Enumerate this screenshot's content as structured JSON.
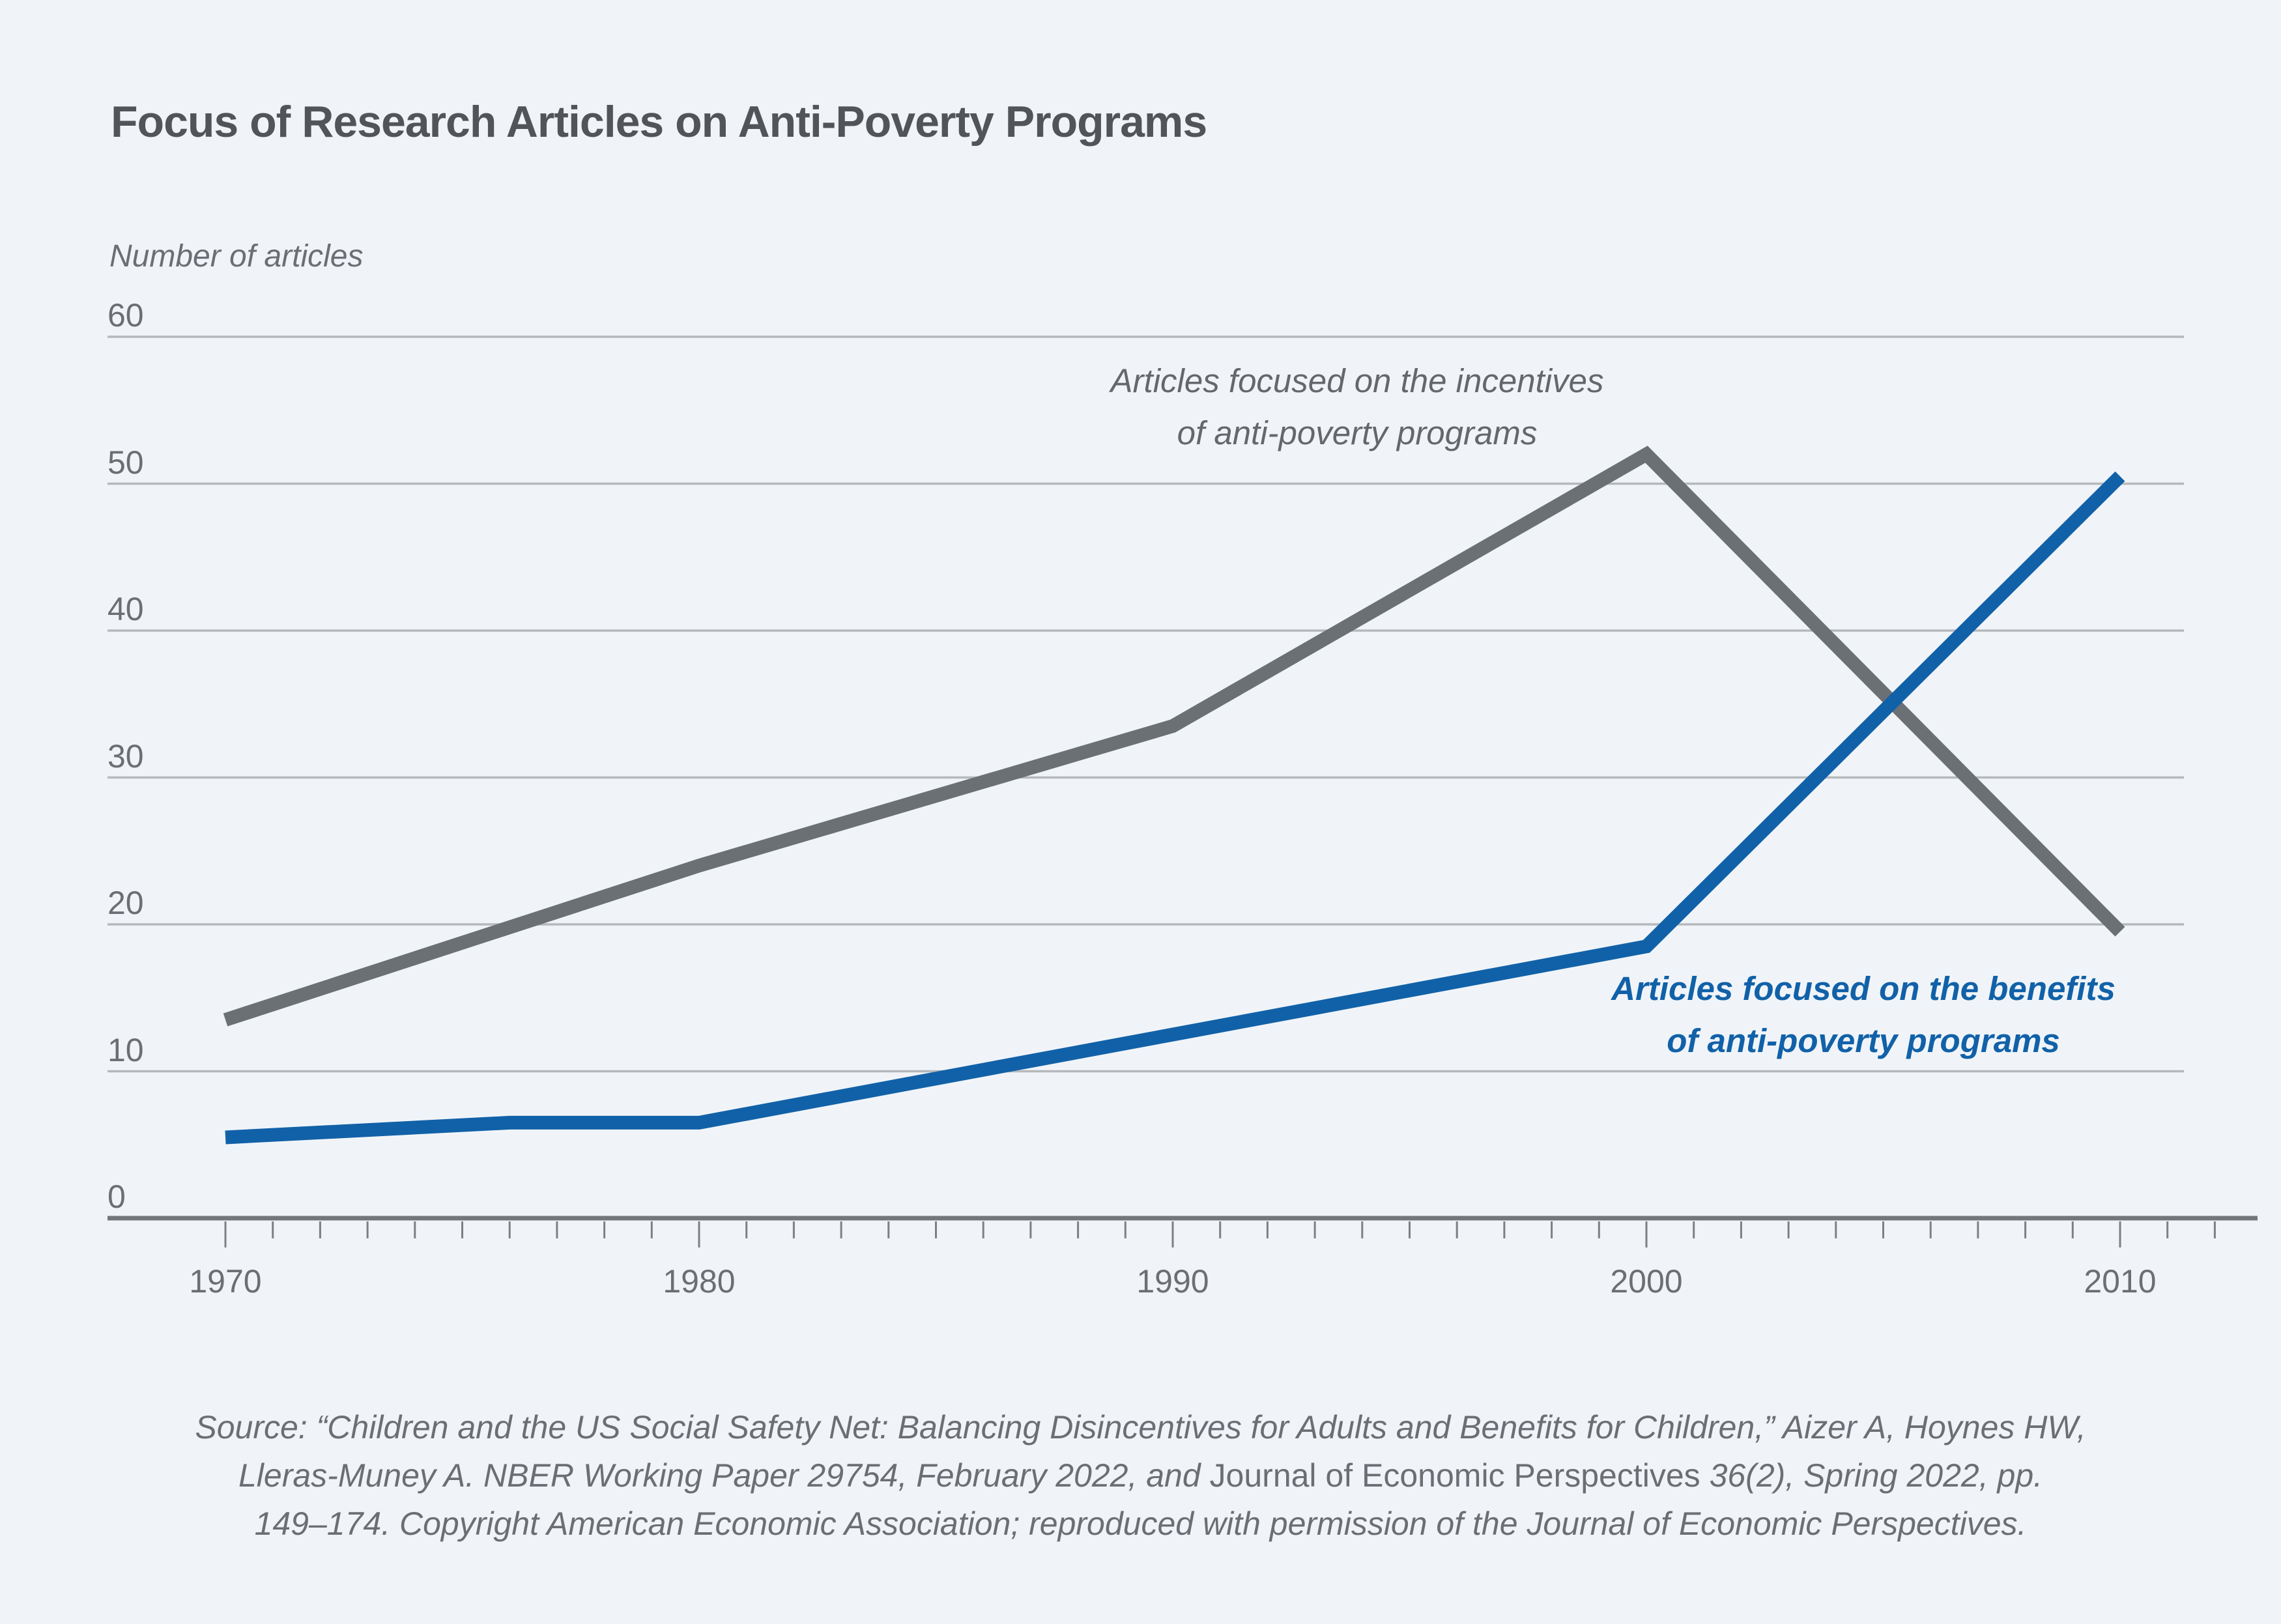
{
  "chart_data": {
    "type": "line",
    "title": "Focus of Research Articles on Anti-Poverty Programs",
    "ylabel": "Number of articles",
    "xlabel": "",
    "ylim": [
      0,
      60
    ],
    "y_ticks": [
      0,
      10,
      20,
      30,
      40,
      50,
      60
    ],
    "x_ticks": [
      1970,
      1980,
      1990,
      2000,
      2010
    ],
    "x_minor_ticks": {
      "start": 1970,
      "end": 2012,
      "step": 1
    },
    "grid": true,
    "legend_position": "inline-annotations",
    "series": [
      {
        "name": "Articles focused on the incentives of anti-poverty programs",
        "color": "#6b7075",
        "points": [
          [
            1970,
            13.5
          ],
          [
            1980,
            24
          ],
          [
            1990,
            33.5
          ],
          [
            2000,
            52
          ],
          [
            2010,
            19.5
          ]
        ]
      },
      {
        "name": "Articles focused on the benefits of anti-poverty programs",
        "color": "#1161a8",
        "points": [
          [
            1970,
            5.5
          ],
          [
            1976,
            6.5
          ],
          [
            1980,
            6.5
          ],
          [
            1990,
            12.5
          ],
          [
            2000,
            18.5
          ],
          [
            2010,
            50.5
          ]
        ]
      }
    ],
    "annotations": [
      {
        "series": "incentives",
        "lines": [
          "Articles focused on the incentives",
          "of anti-poverty programs"
        ]
      },
      {
        "series": "benefits",
        "lines": [
          "Articles focused on the benefits",
          "of anti-poverty programs"
        ]
      }
    ]
  },
  "source": {
    "line1": "Source: “Children and the US Social Safety Net: Balancing Disincentives for Adults and Benefits for Children,” Aizer A, Hoynes HW,",
    "line2_pre": "Lleras-Muney A. NBER Working Paper 29754, February 2022, and ",
    "line2_roman": "Journal of Economic Perspectives",
    "line2_post": " 36(2), Spring 2022, pp.",
    "line3": "149–174. Copyright American Economic Association; reproduced with permission of the Journal of Economic Perspectives."
  },
  "colors": {
    "background": "#f0f4f8",
    "title_text": "#515559",
    "gray_text": "#6b6f74",
    "gridline": "#b6b9bc",
    "axis_line": "#73777b",
    "tick_mark": "#7c8084",
    "incentives_line": "#6b7075",
    "benefits_line": "#1161a8"
  }
}
